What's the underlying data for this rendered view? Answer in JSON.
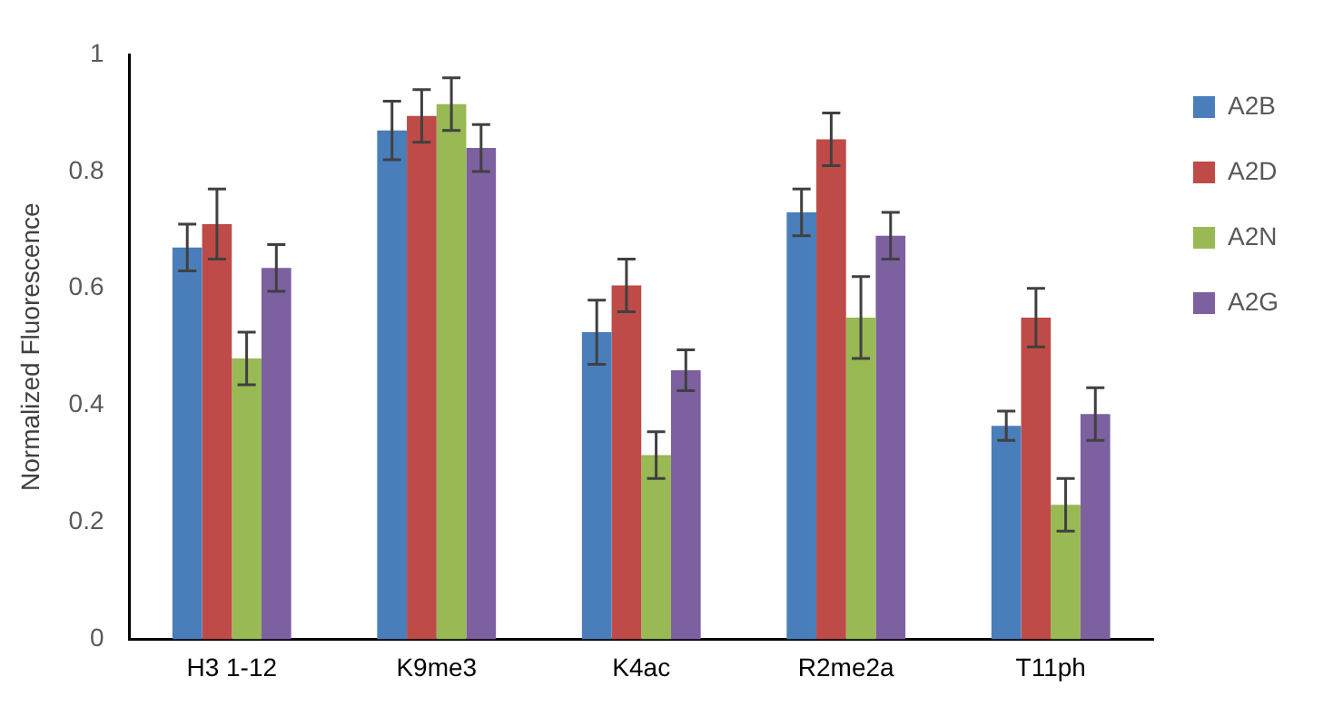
{
  "chart_data": {
    "type": "bar",
    "ylabel": "Normalized Fluorescence",
    "categories": [
      "H3 1-12",
      "K9me3",
      "K4ac",
      "R2me2a",
      "T11ph"
    ],
    "series": [
      {
        "name": "A2B",
        "color": "#4a7ebb",
        "values": [
          0.67,
          0.87,
          0.525,
          0.73,
          0.365
        ],
        "errors": [
          0.04,
          0.05,
          0.055,
          0.04,
          0.025
        ]
      },
      {
        "name": "A2D",
        "color": "#be4b48",
        "values": [
          0.71,
          0.895,
          0.605,
          0.855,
          0.55
        ],
        "errors": [
          0.06,
          0.045,
          0.045,
          0.045,
          0.05
        ]
      },
      {
        "name": "A2N",
        "color": "#98b954",
        "values": [
          0.48,
          0.915,
          0.315,
          0.55,
          0.23
        ],
        "errors": [
          0.045,
          0.045,
          0.04,
          0.07,
          0.045
        ]
      },
      {
        "name": "A2G",
        "color": "#7d60a0",
        "values": [
          0.635,
          0.84,
          0.46,
          0.69,
          0.385
        ],
        "errors": [
          0.04,
          0.04,
          0.035,
          0.04,
          0.045
        ]
      }
    ],
    "ylim": [
      0,
      1
    ],
    "yticks": [
      0,
      0.2,
      0.4,
      0.6,
      0.8,
      1
    ],
    "grid": false,
    "legend": "right"
  }
}
